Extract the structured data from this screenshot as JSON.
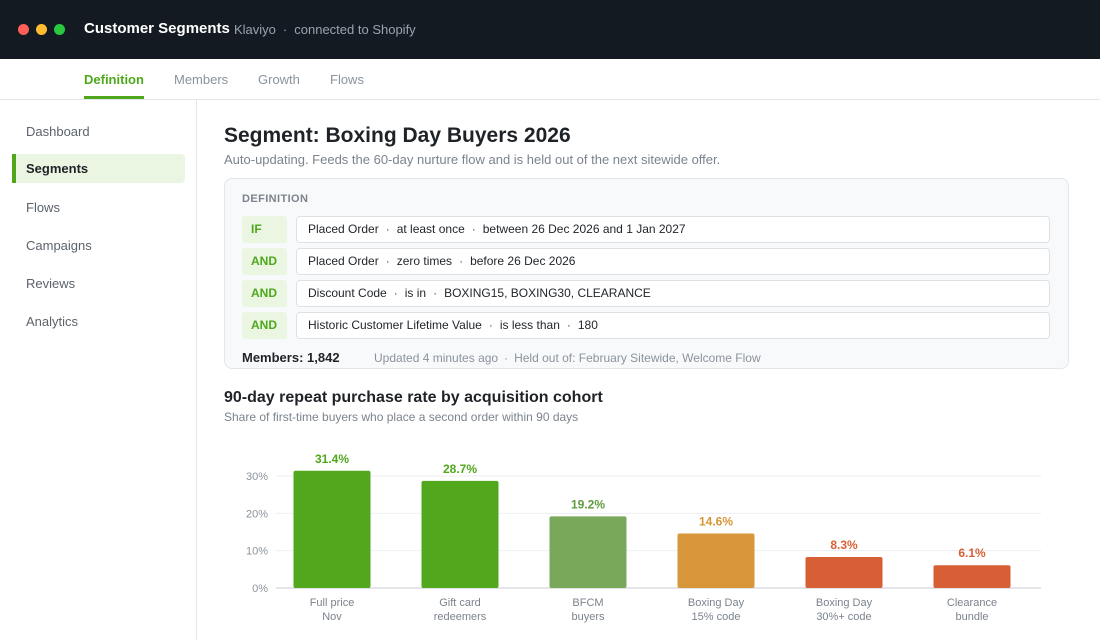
{
  "window": {
    "title": "Customer Segments",
    "app": "Klaviyo",
    "separator": "·",
    "connection": "connected to Shopify"
  },
  "tabs": [
    {
      "label": "Definition",
      "active": true
    },
    {
      "label": "Members",
      "active": false
    },
    {
      "label": "Growth",
      "active": false
    },
    {
      "label": "Flows",
      "active": false
    }
  ],
  "sidebar": {
    "items": [
      {
        "label": "Dashboard",
        "active": false
      },
      {
        "label": "Segments",
        "active": true
      },
      {
        "label": "Flows",
        "active": false
      },
      {
        "label": "Campaigns",
        "active": false
      },
      {
        "label": "Reviews",
        "active": false
      },
      {
        "label": "Analytics",
        "active": false
      }
    ]
  },
  "segment": {
    "title": "Segment: Boxing Day Buyers 2026",
    "description": "Auto-updating. Feeds the 60-day nurture flow and is held out of the next sitewide offer.",
    "definition_label": "DEFINITION",
    "rules": [
      {
        "op": "IF",
        "parts": [
          "Placed Order",
          "at least once",
          "between 26 Dec 2026 and 1 Jan 2027"
        ]
      },
      {
        "op": "AND",
        "parts": [
          "Placed Order",
          "zero times",
          "before 26 Dec 2026"
        ]
      },
      {
        "op": "AND",
        "parts": [
          "Discount Code",
          "is in",
          "BOXING15, BOXING30, CLEARANCE"
        ]
      },
      {
        "op": "AND",
        "parts": [
          "Historic Customer Lifetime Value",
          "is less than",
          "180"
        ]
      }
    ],
    "members_label": "Members: 1,842",
    "updated": "Updated 4 minutes ago",
    "held_out": "Held out of: February Sitewide, Welcome Flow"
  },
  "chart": {
    "title": "90-day repeat purchase rate by acquisition cohort",
    "subtitle": "Share of first-time buyers who place a second order within 90 days"
  },
  "colors": {
    "accent": "#4fa81c",
    "bar_green": "#52a81c",
    "bar_muted_green": "#7aa85a",
    "bar_orange": "#d8963a",
    "bar_red": "#d85f35"
  },
  "chart_data": {
    "type": "bar",
    "categories": [
      "Full price Nov",
      "Gift card redeemers",
      "BFCM buyers",
      "Boxing Day 15% code",
      "Boxing Day 30%+ code",
      "Clearance bundle"
    ],
    "category_lines": [
      [
        "Full price",
        "Nov"
      ],
      [
        "Gift card",
        "redeemers"
      ],
      [
        "BFCM",
        "buyers"
      ],
      [
        "Boxing Day",
        "15% code"
      ],
      [
        "Boxing Day",
        "30%+ code"
      ],
      [
        "Clearance",
        "bundle"
      ]
    ],
    "values": [
      31.4,
      28.7,
      19.2,
      14.6,
      8.3,
      6.1
    ],
    "data_labels": [
      "31.4%",
      "28.7%",
      "19.2%",
      "14.6%",
      "8.3%",
      "6.1%"
    ],
    "bar_colors": [
      "#52a81c",
      "#52a81c",
      "#7aa85a",
      "#d8963a",
      "#d85f35",
      "#d85f35"
    ],
    "label_colors": [
      "#4fa81c",
      "#4fa81c",
      "#5f9a3e",
      "#d8963a",
      "#d85f35",
      "#d85f35"
    ],
    "yticks": [
      0,
      10,
      20,
      30
    ],
    "ytick_labels": [
      "0%",
      "10%",
      "20%",
      "30%"
    ],
    "ylim": [
      0,
      30
    ],
    "grid": true,
    "xlabel": "",
    "ylabel": ""
  }
}
